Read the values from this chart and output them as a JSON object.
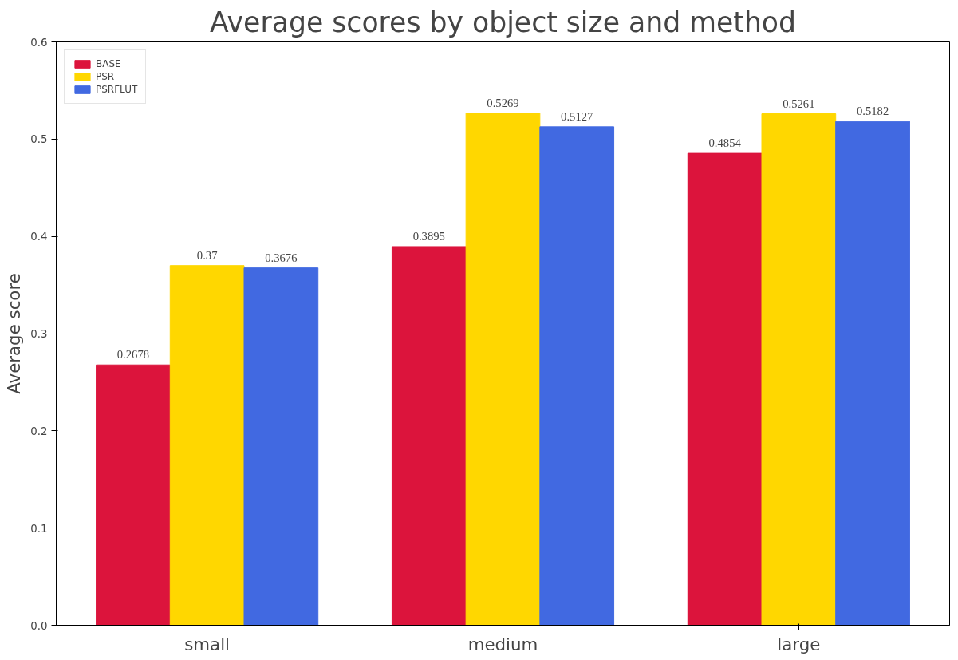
{
  "chart_data": {
    "type": "bar",
    "title": "Average scores by object size and method",
    "ylabel": "Average score",
    "categories": [
      "small",
      "medium",
      "large"
    ],
    "series": [
      {
        "name": "BASE",
        "color": "#dc143c",
        "values": [
          0.2678,
          0.3895,
          0.4854
        ]
      },
      {
        "name": "PSR",
        "color": "#ffd700",
        "values": [
          0.37,
          0.5269,
          0.5261
        ]
      },
      {
        "name": "PSRFLUT",
        "color": "#4169e1",
        "values": [
          0.3676,
          0.5127,
          0.5182
        ]
      }
    ],
    "ylim": [
      0,
      0.6
    ],
    "yticks": [
      {
        "value": 0,
        "label": "0.0"
      },
      0.1,
      0.2,
      0.3,
      0.4,
      0.5,
      0.6
    ],
    "data_labels": true,
    "legend": "top left",
    "grid": false
  }
}
